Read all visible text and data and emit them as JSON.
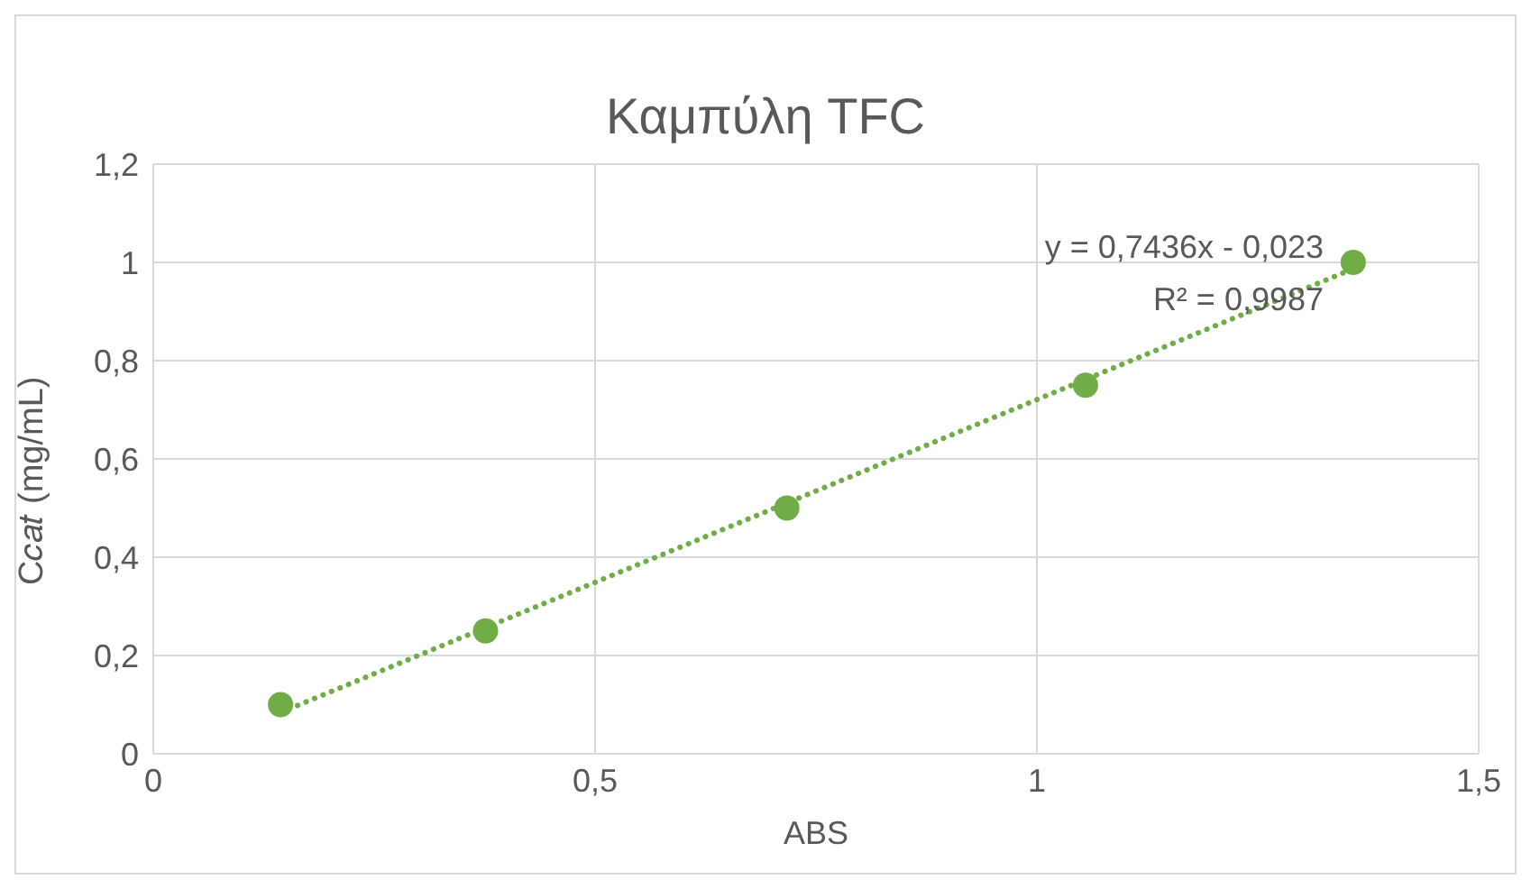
{
  "chart_data": {
    "type": "scatter",
    "title": "Καμπύλη TFC",
    "xlabel": "ABS",
    "ylabel": "C𝑐𝑎𝑡 (mg/mL)",
    "xlim": [
      0,
      1.5
    ],
    "xticks": [
      0,
      {
        "value": 0.5,
        "label": "0,5"
      },
      1,
      {
        "value": 1.5,
        "label": "1,5"
      }
    ],
    "ylim": [
      0,
      1.2
    ],
    "yticks": [
      0,
      {
        "value": 0.2,
        "label": "0,2"
      },
      {
        "value": 0.4,
        "label": "0,4"
      },
      {
        "value": 0.6,
        "label": "0,6"
      },
      {
        "value": 0.8,
        "label": "0,8"
      },
      1,
      {
        "value": 1.2,
        "label": "1,2"
      }
    ],
    "grid": true,
    "legend": false,
    "marker": "circle",
    "series": [
      {
        "color": "#70ad47",
        "x": [
          0.144,
          0.376,
          0.717,
          1.055,
          1.358
        ],
        "values": [
          0.1,
          0.25,
          0.5,
          0.75,
          1.0
        ]
      },
      {
        "type": "line",
        "color": "#70ad47",
        "line_style": "dotted",
        "marker": "none",
        "x": [
          0.144,
          1.358
        ],
        "values": [
          0.084,
          0.987
        ]
      }
    ],
    "annotations": [
      "y = 0,7436x - 0,023",
      "R² = 0,9987"
    ]
  }
}
